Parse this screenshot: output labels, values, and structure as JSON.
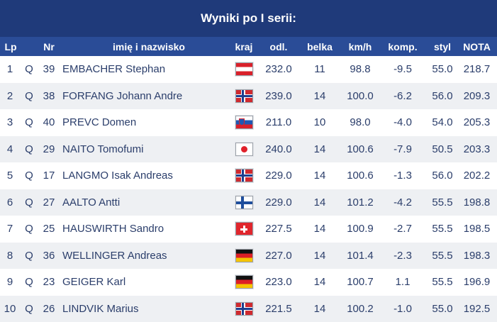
{
  "title": "Wyniki po I serii:",
  "headers": {
    "lp": "Lp",
    "nr": "Nr",
    "name": "imię i nazwisko",
    "kraj": "kraj",
    "odl": "odl.",
    "belka": "belka",
    "kmh": "km/h",
    "komp": "komp.",
    "styl": "styl",
    "nota": "NOTA"
  },
  "colors": {
    "title_bg": "#1f3a7a",
    "header_bg": "#2a4c97",
    "text": "#2b3e6b",
    "row_alt": "#eef0f3"
  },
  "rows": [
    {
      "lp": "1",
      "q": "Q",
      "nr": "39",
      "name": "EMBACHER Stephan",
      "flag": "flag-aut-icon",
      "odl": "232.0",
      "belka": "11",
      "kmh": "98.8",
      "komp": "-9.5",
      "styl": "55.0",
      "nota": "218.7"
    },
    {
      "lp": "2",
      "q": "Q",
      "nr": "38",
      "name": "FORFANG Johann Andre",
      "flag": "flag-nor-icon",
      "odl": "239.0",
      "belka": "14",
      "kmh": "100.0",
      "komp": "-6.2",
      "styl": "56.0",
      "nota": "209.3"
    },
    {
      "lp": "3",
      "q": "Q",
      "nr": "40",
      "name": "PREVC Domen",
      "flag": "flag-slo-icon",
      "odl": "211.0",
      "belka": "10",
      "kmh": "98.0",
      "komp": "-4.0",
      "styl": "54.0",
      "nota": "205.3"
    },
    {
      "lp": "4",
      "q": "Q",
      "nr": "29",
      "name": "NAITO Tomofumi",
      "flag": "flag-jpn-icon",
      "odl": "240.0",
      "belka": "14",
      "kmh": "100.6",
      "komp": "-7.9",
      "styl": "50.5",
      "nota": "203.3"
    },
    {
      "lp": "5",
      "q": "Q",
      "nr": "17",
      "name": "LANGMO Isak Andreas",
      "flag": "flag-nor-icon",
      "odl": "229.0",
      "belka": "14",
      "kmh": "100.6",
      "komp": "-1.3",
      "styl": "56.0",
      "nota": "202.2"
    },
    {
      "lp": "6",
      "q": "Q",
      "nr": "27",
      "name": "AALTO Antti",
      "flag": "flag-fin-icon",
      "odl": "229.0",
      "belka": "14",
      "kmh": "101.2",
      "komp": "-4.2",
      "styl": "55.5",
      "nota": "198.8"
    },
    {
      "lp": "7",
      "q": "Q",
      "nr": "25",
      "name": "HAUSWIRTH Sandro",
      "flag": "flag-sui-icon",
      "odl": "227.5",
      "belka": "14",
      "kmh": "100.9",
      "komp": "-2.7",
      "styl": "55.5",
      "nota": "198.5"
    },
    {
      "lp": "8",
      "q": "Q",
      "nr": "36",
      "name": "WELLINGER Andreas",
      "flag": "flag-ger-icon",
      "odl": "227.0",
      "belka": "14",
      "kmh": "101.4",
      "komp": "-2.3",
      "styl": "55.5",
      "nota": "198.3"
    },
    {
      "lp": "9",
      "q": "Q",
      "nr": "23",
      "name": "GEIGER Karl",
      "flag": "flag-ger-icon",
      "odl": "223.0",
      "belka": "14",
      "kmh": "100.7",
      "komp": "1.1",
      "styl": "55.5",
      "nota": "196.9"
    },
    {
      "lp": "10",
      "q": "Q",
      "nr": "26",
      "name": "LINDVIK Marius",
      "flag": "flag-nor-icon",
      "odl": "221.5",
      "belka": "14",
      "kmh": "100.2",
      "komp": "-1.0",
      "styl": "55.0",
      "nota": "192.5"
    }
  ]
}
